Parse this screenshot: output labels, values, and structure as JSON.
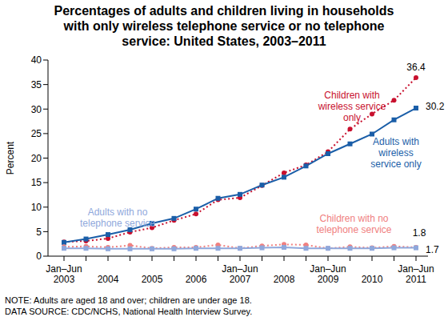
{
  "chart_data": {
    "type": "line",
    "title": "Percentages of adults and children living in households with only wireless telephone service or no telephone service: United States, 2003–2011",
    "y_label": "Percent",
    "categories": [
      "Jan–Jun 2003",
      null,
      "2004",
      null,
      "2005",
      null,
      "2006",
      null,
      "Jan–Jun 2007",
      null,
      "2008",
      null,
      "Jan–Jun 2009",
      null,
      "2010",
      null,
      "Jan–Jun 2011"
    ],
    "series": [
      {
        "name": "Children with wireless service only",
        "color": "#c8102e",
        "line_style": "dotted",
        "marker": "circle",
        "values": [
          2.9,
          3.1,
          3.6,
          4.9,
          5.8,
          7.3,
          8.6,
          11.5,
          11.9,
          14.4,
          17.0,
          18.6,
          21.3,
          25.9,
          29.0,
          31.8,
          36.4
        ]
      },
      {
        "name": "Adults with wireless service only",
        "color": "#1a5ea8",
        "line_style": "solid",
        "marker": "square",
        "values": [
          2.8,
          3.5,
          4.4,
          5.4,
          6.7,
          7.7,
          9.6,
          11.8,
          12.6,
          14.5,
          16.1,
          18.4,
          20.9,
          22.9,
          24.9,
          27.8,
          30.2
        ]
      },
      {
        "name": "Children with no telephone service",
        "color": "#f08080",
        "line_style": "dotted",
        "marker": "circle",
        "values": [
          1.9,
          2.0,
          1.8,
          2.2,
          1.6,
          1.8,
          1.8,
          2.3,
          1.6,
          2.1,
          2.4,
          2.3,
          1.6,
          1.9,
          1.7,
          2.0,
          1.8
        ]
      },
      {
        "name": "Adults with no telephone service",
        "color": "#8fa8dc",
        "line_style": "solid",
        "marker": "square",
        "values": [
          1.6,
          1.6,
          1.5,
          1.5,
          1.5,
          1.5,
          1.6,
          1.6,
          1.6,
          1.7,
          1.8,
          1.6,
          1.6,
          1.6,
          1.6,
          1.7,
          1.7
        ]
      }
    ],
    "ylim": [
      0,
      40
    ],
    "yticks": [
      0,
      5,
      10,
      15,
      20,
      25,
      30,
      35,
      40
    ],
    "grid": false,
    "notes": [
      "NOTE: Adults are aged 18 and over; children are under age 18.",
      "DATA SOURCE: CDC/NCHS, National Health Interview Survey."
    ]
  }
}
